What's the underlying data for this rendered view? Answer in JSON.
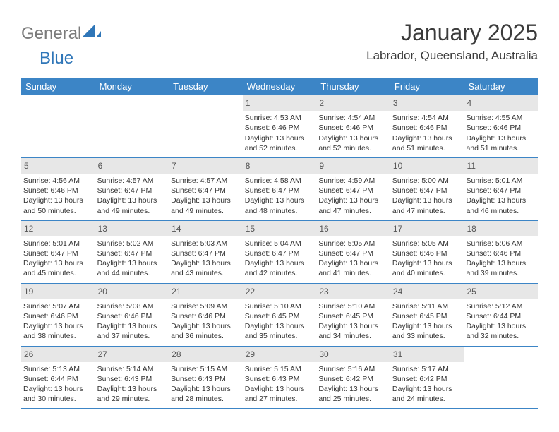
{
  "logo": {
    "word1": "General",
    "word2": "Blue"
  },
  "title": "January 2025",
  "location": "Labrador, Queensland, Australia",
  "colors": {
    "header_bg": "#3c85c6",
    "header_text": "#ffffff",
    "daynum_bg": "#e7e7e7",
    "rule": "#3c85c6",
    "logo_gray": "#7a7a7a",
    "logo_blue": "#2f76b8"
  },
  "weekdays": [
    "Sunday",
    "Monday",
    "Tuesday",
    "Wednesday",
    "Thursday",
    "Friday",
    "Saturday"
  ],
  "weeks": [
    [
      {
        "n": "",
        "sr": "",
        "ss": "",
        "dl": "",
        "empty": true
      },
      {
        "n": "",
        "sr": "",
        "ss": "",
        "dl": "",
        "empty": true
      },
      {
        "n": "",
        "sr": "",
        "ss": "",
        "dl": "",
        "empty": true
      },
      {
        "n": "1",
        "sr": "4:53 AM",
        "ss": "6:46 PM",
        "dl": "13 hours and 52 minutes."
      },
      {
        "n": "2",
        "sr": "4:54 AM",
        "ss": "6:46 PM",
        "dl": "13 hours and 52 minutes."
      },
      {
        "n": "3",
        "sr": "4:54 AM",
        "ss": "6:46 PM",
        "dl": "13 hours and 51 minutes."
      },
      {
        "n": "4",
        "sr": "4:55 AM",
        "ss": "6:46 PM",
        "dl": "13 hours and 51 minutes."
      }
    ],
    [
      {
        "n": "5",
        "sr": "4:56 AM",
        "ss": "6:46 PM",
        "dl": "13 hours and 50 minutes."
      },
      {
        "n": "6",
        "sr": "4:57 AM",
        "ss": "6:47 PM",
        "dl": "13 hours and 49 minutes."
      },
      {
        "n": "7",
        "sr": "4:57 AM",
        "ss": "6:47 PM",
        "dl": "13 hours and 49 minutes."
      },
      {
        "n": "8",
        "sr": "4:58 AM",
        "ss": "6:47 PM",
        "dl": "13 hours and 48 minutes."
      },
      {
        "n": "9",
        "sr": "4:59 AM",
        "ss": "6:47 PM",
        "dl": "13 hours and 47 minutes."
      },
      {
        "n": "10",
        "sr": "5:00 AM",
        "ss": "6:47 PM",
        "dl": "13 hours and 47 minutes."
      },
      {
        "n": "11",
        "sr": "5:01 AM",
        "ss": "6:47 PM",
        "dl": "13 hours and 46 minutes."
      }
    ],
    [
      {
        "n": "12",
        "sr": "5:01 AM",
        "ss": "6:47 PM",
        "dl": "13 hours and 45 minutes."
      },
      {
        "n": "13",
        "sr": "5:02 AM",
        "ss": "6:47 PM",
        "dl": "13 hours and 44 minutes."
      },
      {
        "n": "14",
        "sr": "5:03 AM",
        "ss": "6:47 PM",
        "dl": "13 hours and 43 minutes."
      },
      {
        "n": "15",
        "sr": "5:04 AM",
        "ss": "6:47 PM",
        "dl": "13 hours and 42 minutes."
      },
      {
        "n": "16",
        "sr": "5:05 AM",
        "ss": "6:47 PM",
        "dl": "13 hours and 41 minutes."
      },
      {
        "n": "17",
        "sr": "5:05 AM",
        "ss": "6:46 PM",
        "dl": "13 hours and 40 minutes."
      },
      {
        "n": "18",
        "sr": "5:06 AM",
        "ss": "6:46 PM",
        "dl": "13 hours and 39 minutes."
      }
    ],
    [
      {
        "n": "19",
        "sr": "5:07 AM",
        "ss": "6:46 PM",
        "dl": "13 hours and 38 minutes."
      },
      {
        "n": "20",
        "sr": "5:08 AM",
        "ss": "6:46 PM",
        "dl": "13 hours and 37 minutes."
      },
      {
        "n": "21",
        "sr": "5:09 AM",
        "ss": "6:46 PM",
        "dl": "13 hours and 36 minutes."
      },
      {
        "n": "22",
        "sr": "5:10 AM",
        "ss": "6:45 PM",
        "dl": "13 hours and 35 minutes."
      },
      {
        "n": "23",
        "sr": "5:10 AM",
        "ss": "6:45 PM",
        "dl": "13 hours and 34 minutes."
      },
      {
        "n": "24",
        "sr": "5:11 AM",
        "ss": "6:45 PM",
        "dl": "13 hours and 33 minutes."
      },
      {
        "n": "25",
        "sr": "5:12 AM",
        "ss": "6:44 PM",
        "dl": "13 hours and 32 minutes."
      }
    ],
    [
      {
        "n": "26",
        "sr": "5:13 AM",
        "ss": "6:44 PM",
        "dl": "13 hours and 30 minutes."
      },
      {
        "n": "27",
        "sr": "5:14 AM",
        "ss": "6:43 PM",
        "dl": "13 hours and 29 minutes."
      },
      {
        "n": "28",
        "sr": "5:15 AM",
        "ss": "6:43 PM",
        "dl": "13 hours and 28 minutes."
      },
      {
        "n": "29",
        "sr": "5:15 AM",
        "ss": "6:43 PM",
        "dl": "13 hours and 27 minutes."
      },
      {
        "n": "30",
        "sr": "5:16 AM",
        "ss": "6:42 PM",
        "dl": "13 hours and 25 minutes."
      },
      {
        "n": "31",
        "sr": "5:17 AM",
        "ss": "6:42 PM",
        "dl": "13 hours and 24 minutes."
      },
      {
        "n": "",
        "sr": "",
        "ss": "",
        "dl": "",
        "empty": true
      }
    ]
  ],
  "labels": {
    "sunrise": "Sunrise: ",
    "sunset": "Sunset: ",
    "daylight": "Daylight: "
  }
}
